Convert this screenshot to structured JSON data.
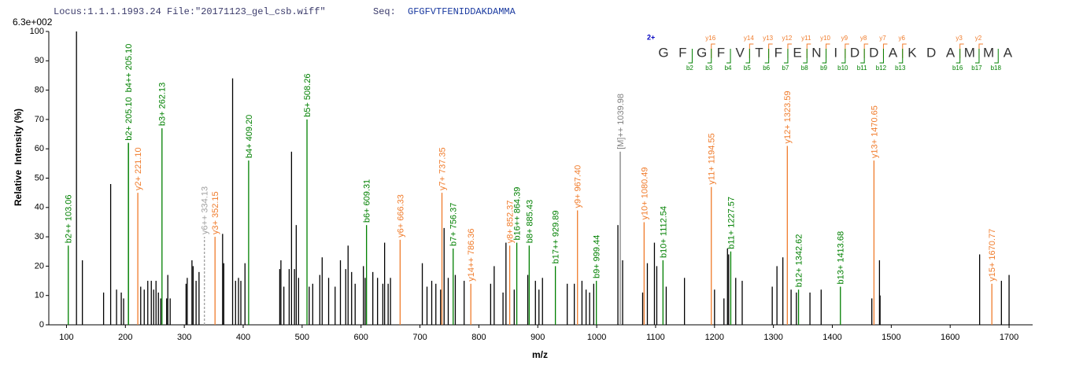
{
  "chart_data": {
    "type": "spectrum",
    "header": {
      "locus": "Locus:1.1.1.1993.24 File:\"20171123_gel_csb.wiff\"",
      "seq_label": "Seq:",
      "sequence": "GFGFVTFENIDDAKDAMMA"
    },
    "scale_label": "6.3e+002",
    "x_label": "m/z",
    "y_label": "Relative  Intensity (%)",
    "xlim": [
      70,
      1740
    ],
    "ylim": [
      0,
      100
    ],
    "xticks": [
      100,
      200,
      300,
      400,
      500,
      600,
      700,
      800,
      900,
      1000,
      1100,
      1200,
      1300,
      1400,
      1500,
      1600,
      1700
    ],
    "yticks": [
      0,
      10,
      20,
      30,
      40,
      50,
      60,
      70,
      80,
      90,
      100
    ],
    "peaks": {
      "color": "#000000",
      "x": [
        117,
        127,
        163,
        175,
        185,
        193,
        197,
        226,
        232,
        238,
        244,
        248,
        252,
        256,
        260,
        270,
        272,
        276,
        303,
        305,
        313,
        315,
        320,
        325,
        365,
        367,
        382,
        387,
        392,
        396,
        403,
        462,
        464,
        469,
        478,
        482,
        487,
        490,
        494,
        512,
        518,
        530,
        534,
        545,
        556,
        565,
        574,
        578,
        584,
        590,
        604,
        607,
        620,
        628,
        637,
        640,
        646,
        650,
        704,
        712,
        720,
        727,
        735,
        741,
        748,
        760,
        775,
        820,
        826,
        841,
        846,
        860,
        883,
        896,
        902,
        908,
        950,
        962,
        975,
        982,
        988,
        995,
        1036,
        1044,
        1078,
        1086,
        1098,
        1102,
        1118,
        1149,
        1200,
        1216,
        1222,
        1224,
        1236,
        1247,
        1298,
        1306,
        1316,
        1330,
        1339,
        1362,
        1381,
        1467,
        1480,
        1481,
        1650,
        1687,
        1700
      ],
      "values": [
        100,
        22,
        11,
        48,
        12,
        11,
        9,
        13,
        12,
        15,
        15,
        12,
        15,
        11,
        9,
        9,
        17,
        9,
        14,
        16,
        22,
        20,
        15,
        18,
        31,
        21,
        84,
        15,
        16,
        15,
        21,
        19,
        22,
        13,
        19,
        59,
        19,
        34,
        16,
        13,
        14,
        17,
        23,
        16,
        13,
        22,
        19,
        27,
        18,
        14,
        20,
        16,
        18,
        16,
        14,
        28,
        14,
        16,
        21,
        13,
        15,
        14,
        12,
        33,
        16,
        17,
        15,
        14,
        20,
        11,
        28,
        12,
        17,
        15,
        12,
        16,
        14,
        14,
        15,
        12,
        11,
        14,
        34,
        22,
        11,
        21,
        28,
        20,
        13,
        16,
        12,
        9,
        26,
        24,
        16,
        15,
        13,
        20,
        23,
        12,
        11,
        11,
        12,
        9,
        22,
        10,
        24,
        15,
        17
      ]
    },
    "ions": [
      {
        "label": "b2++ 103.06",
        "x": 103.06,
        "value": 27,
        "color": "#008000"
      },
      {
        "label": "b2+ 205.10",
        "x": 205.1,
        "value": 62,
        "color": "#008000"
      },
      {
        "label": "b4++ 205.10",
        "x": 205.1,
        "value": 62,
        "color": "#008000"
      },
      {
        "label": "y2+ 221.10",
        "x": 221.1,
        "value": 45,
        "color": "#f07c2c"
      },
      {
        "label": "b3+ 262.13",
        "x": 262.13,
        "value": 67,
        "color": "#008000"
      },
      {
        "label": "y6++ 334.13",
        "x": 334.13,
        "value": 30,
        "color": "#a0a0a0",
        "dashed": true
      },
      {
        "label": "y3+ 352.15",
        "x": 352.15,
        "value": 30,
        "color": "#f07c2c"
      },
      {
        "label": "b4+ 409.20",
        "x": 409.2,
        "value": 56,
        "color": "#008000"
      },
      {
        "label": "b5+ 508.26",
        "x": 508.26,
        "value": 70,
        "color": "#008000"
      },
      {
        "label": "b6+ 609.31",
        "x": 609.31,
        "value": 34,
        "color": "#008000"
      },
      {
        "label": "y6+ 666.33",
        "x": 666.33,
        "value": 29,
        "color": "#f07c2c"
      },
      {
        "label": "y7+ 737.35",
        "x": 737.35,
        "value": 45,
        "color": "#f07c2c"
      },
      {
        "label": "b7+ 756.37",
        "x": 756.37,
        "value": 26,
        "color": "#008000"
      },
      {
        "label": "y14++ 786.36",
        "x": 786.36,
        "value": 14,
        "color": "#f07c2c"
      },
      {
        "label": "y8+ 852.37",
        "x": 852.37,
        "value": 27,
        "color": "#f07c2c"
      },
      {
        "label": "b16++ 864.39",
        "x": 864.39,
        "value": 28,
        "color": "#008000"
      },
      {
        "label": "b8+ 885.43",
        "x": 885.43,
        "value": 27,
        "color": "#008000"
      },
      {
        "label": "b17++ 929.89",
        "x": 929.89,
        "value": 20,
        "color": "#008000"
      },
      {
        "label": "y9+ 967.40",
        "x": 967.4,
        "value": 39,
        "color": "#f07c2c"
      },
      {
        "label": "b9+ 999.44",
        "x": 999.44,
        "value": 15,
        "color": "#008000"
      },
      {
        "label": "[M]++ 1039.98",
        "x": 1039.98,
        "value": 59,
        "color": "#808080"
      },
      {
        "label": "y10+ 1080.49",
        "x": 1080.49,
        "value": 35,
        "color": "#f07c2c"
      },
      {
        "label": "b10+ 1112.54",
        "x": 1112.54,
        "value": 22,
        "color": "#008000"
      },
      {
        "label": "y11+ 1194.55",
        "x": 1194.55,
        "value": 47,
        "color": "#f07c2c"
      },
      {
        "label": "b11+ 1227.57",
        "x": 1227.57,
        "value": 25,
        "color": "#008000"
      },
      {
        "label": "y12+ 1323.59",
        "x": 1323.59,
        "value": 61,
        "color": "#f07c2c"
      },
      {
        "label": "b12+ 1342.62",
        "x": 1342.62,
        "value": 12,
        "color": "#008000"
      },
      {
        "label": "b13+ 1413.68",
        "x": 1413.68,
        "value": 13,
        "color": "#008000"
      },
      {
        "label": "y13+ 1470.65",
        "x": 1470.65,
        "value": 56,
        "color": "#f07c2c"
      },
      {
        "label": "y15+ 1670.77",
        "x": 1670.77,
        "value": 14,
        "color": "#f07c2c"
      }
    ],
    "fragment_map": {
      "charge": "2+",
      "charge_color": "#0000c0",
      "residues": [
        "G",
        "F",
        "G",
        "F",
        "V",
        "T",
        "F",
        "E",
        "N",
        "I",
        "D",
        "D",
        "A",
        "K",
        "D",
        "A",
        "M",
        "M",
        "A"
      ],
      "y_color": "#f07c2c",
      "b_color": "#008000",
      "y_after": [
        null,
        null,
        "y16",
        null,
        "y14",
        "y13",
        "y12",
        "y11",
        "y10",
        "y9",
        "y8",
        "y7",
        "y6",
        null,
        null,
        "y3",
        "y2",
        null
      ],
      "b_after": [
        null,
        "b2",
        "b3",
        "b4",
        "b5",
        "b6",
        "b7",
        "b8",
        "b9",
        "b10",
        "b11",
        "b12",
        "b13",
        null,
        null,
        "b16",
        "b17",
        "b18"
      ]
    }
  }
}
